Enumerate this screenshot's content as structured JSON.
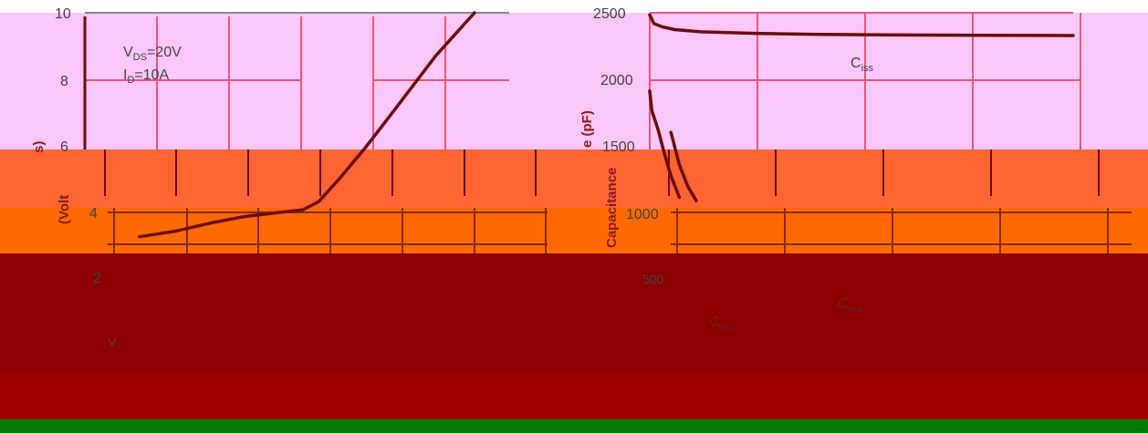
{
  "colors": {
    "pink": "#fbc6f8",
    "orange1": "#ff6433",
    "orange2": "#ff6a00",
    "darkred": "#8c0000",
    "red": "#a00000",
    "green": "#007a00",
    "grid": "#e8577a",
    "curve": "#6a0d0d",
    "text": "#444444",
    "label": "#8b1a1a"
  },
  "chart_data": [
    {
      "type": "line",
      "title": "",
      "xlabel": "",
      "ylabel": "V_GS (Volts)",
      "ylabel_visible": "V",
      "ylabel_fragments": [
        "s)",
        "(Volt"
      ],
      "ylim": [
        0,
        10
      ],
      "yticks": [
        "10",
        "8",
        "6",
        "4",
        "2"
      ],
      "annotations": [
        {
          "main": "V",
          "sub": "DS",
          "rest": "=20V"
        },
        {
          "main": "I",
          "sub": "D",
          "rest": "=10A"
        }
      ],
      "series": [
        {
          "points": [
            [
              0.14,
              1.7
            ],
            [
              0.23,
              1.9
            ],
            [
              0.32,
              2.2
            ],
            [
              0.41,
              2.45
            ],
            [
              0.5,
              2.6
            ],
            [
              0.56,
              2.7
            ],
            [
              0.6,
              3.0
            ],
            [
              0.65,
              3.8
            ],
            [
              0.72,
              5.0
            ],
            [
              0.8,
              6.5
            ],
            [
              0.9,
              8.4
            ],
            [
              1.0,
              10.0
            ]
          ]
        }
      ]
    },
    {
      "type": "line",
      "title": "",
      "xlabel": "",
      "ylabel": "Capacitance (pF)",
      "ylabel_fragments": [
        "e (pF)",
        "Capacitance"
      ],
      "ylim": [
        0,
        2500
      ],
      "yticks": [
        "2500",
        "2000",
        "1500",
        "1000",
        "500"
      ],
      "series": [
        {
          "name": "C_iss",
          "label_main": "C",
          "label_sub": "iss",
          "points": [
            [
              0,
              2480
            ],
            [
              0.01,
              2400
            ],
            [
              0.03,
              2370
            ],
            [
              0.06,
              2345
            ],
            [
              0.12,
              2325
            ],
            [
              0.25,
              2310
            ],
            [
              0.4,
              2300
            ],
            [
              0.6,
              2295
            ],
            [
              0.8,
              2292
            ],
            [
              1.0,
              2290
            ]
          ]
        },
        {
          "name": "C_oss",
          "label_main": "C",
          "label_sub": "oss",
          "points": [
            [
              0,
              1780
            ],
            [
              0.005,
              1600
            ],
            [
              0.02,
              1420
            ],
            [
              0.035,
              1200
            ],
            [
              0.05,
              1000
            ],
            [
              0.07,
              800
            ]
          ]
        },
        {
          "name": "C_rss",
          "label_main": "C",
          "label_sub": "rss",
          "points": [
            [
              0.05,
              1400
            ],
            [
              0.07,
              1100
            ],
            [
              0.09,
              900
            ],
            [
              0.11,
              770
            ]
          ]
        }
      ]
    }
  ]
}
